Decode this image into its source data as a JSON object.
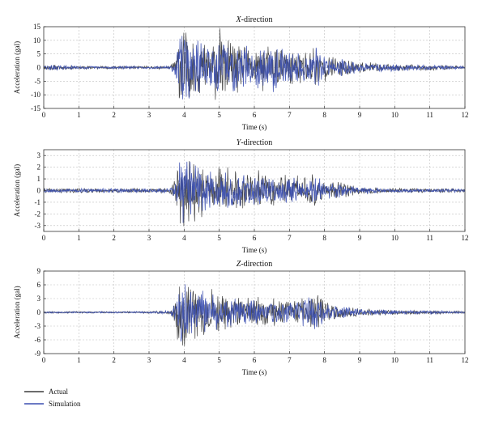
{
  "colors": {
    "actual": "#3c3c3c",
    "simulation": "#3b4fb0",
    "grid": "#bfbfbf",
    "frame": "#333333"
  },
  "legend": [
    {
      "label": "Actual",
      "color": "#3c3c3c"
    },
    {
      "label": "Simulation",
      "color": "#3b4fb0"
    }
  ],
  "chart_data": [
    {
      "type": "line",
      "title_letter": "X",
      "title_rest": "-direction",
      "xlabel": "Time (s)",
      "ylabel": "Acceleration (gal)",
      "xlim": [
        0,
        12
      ],
      "ylim": [
        -15,
        15
      ],
      "xticks": [
        0,
        1,
        2,
        3,
        4,
        5,
        6,
        7,
        8,
        9,
        10,
        11,
        12
      ],
      "yticks": [
        -15,
        -10,
        -5,
        0,
        5,
        10,
        15
      ],
      "grid": true,
      "envelope": {
        "t": [
          0,
          0.2,
          0.5,
          1.0,
          2.0,
          3.0,
          3.6,
          3.75,
          3.85,
          3.95,
          4.1,
          4.3,
          4.6,
          5.0,
          5.5,
          6.0,
          6.5,
          7.0,
          7.5,
          7.7,
          8.0,
          8.5,
          9.0,
          9.5,
          10.0,
          11.0,
          12.0
        ],
        "amp": [
          0.6,
          0.9,
          0.6,
          0.5,
          0.4,
          0.4,
          0.5,
          2.5,
          10.0,
          12.0,
          11.0,
          9.0,
          7.0,
          9.5,
          7.0,
          6.0,
          6.5,
          5.0,
          5.5,
          7.0,
          3.5,
          3.0,
          1.5,
          1.2,
          1.0,
          0.8,
          0.4
        ]
      },
      "series": [
        {
          "name": "Actual",
          "scale": 1.0,
          "seed": 11
        },
        {
          "name": "Simulation",
          "scale": 0.92,
          "seed": 29
        }
      ]
    },
    {
      "type": "line",
      "title_letter": "Y",
      "title_rest": "-direction",
      "xlabel": "Time (s)",
      "ylabel": "Acceleration (gal)",
      "xlim": [
        0,
        12
      ],
      "ylim": [
        -3.5,
        3.5
      ],
      "xticks": [
        0,
        1,
        2,
        3,
        4,
        5,
        6,
        7,
        8,
        9,
        10,
        11,
        12
      ],
      "yticks": [
        -3,
        -2,
        -1,
        0,
        1,
        2,
        3
      ],
      "grid": true,
      "envelope": {
        "t": [
          0,
          1.0,
          2.0,
          3.0,
          3.6,
          3.75,
          3.85,
          3.95,
          4.1,
          4.3,
          4.6,
          5.0,
          5.5,
          6.0,
          6.5,
          7.0,
          7.5,
          7.8,
          8.0,
          8.5,
          9.0,
          9.5,
          10.0,
          11.0,
          12.0
        ],
        "amp": [
          0.15,
          0.15,
          0.15,
          0.15,
          0.2,
          0.8,
          2.0,
          2.8,
          2.5,
          2.0,
          1.6,
          1.4,
          1.3,
          1.2,
          1.1,
          1.0,
          1.0,
          1.1,
          0.6,
          0.5,
          0.25,
          0.2,
          0.15,
          0.15,
          0.12
        ]
      },
      "series": [
        {
          "name": "Actual",
          "scale": 1.0,
          "seed": 41
        },
        {
          "name": "Simulation",
          "scale": 0.9,
          "seed": 53
        }
      ]
    },
    {
      "type": "line",
      "title_letter": "Z",
      "title_rest": "-direction",
      "xlabel": "Time (s)",
      "ylabel": "Acceleration (gal)",
      "xlim": [
        0,
        12
      ],
      "ylim": [
        -9,
        9
      ],
      "xticks": [
        0,
        1,
        2,
        3,
        4,
        5,
        6,
        7,
        8,
        9,
        10,
        11,
        12
      ],
      "yticks": [
        -9,
        -6,
        -3,
        0,
        3,
        6,
        9
      ],
      "grid": true,
      "envelope": {
        "t": [
          0,
          1.0,
          2.0,
          3.0,
          3.6,
          3.75,
          3.85,
          3.95,
          4.1,
          4.3,
          4.6,
          5.0,
          5.5,
          6.0,
          6.5,
          7.0,
          7.5,
          7.8,
          8.0,
          8.5,
          9.0,
          9.5,
          10.0,
          11.0,
          12.0
        ],
        "amp": [
          0.15,
          0.15,
          0.15,
          0.15,
          0.3,
          2.0,
          6.0,
          6.5,
          5.5,
          5.0,
          4.0,
          3.0,
          2.5,
          2.5,
          2.2,
          2.0,
          2.5,
          3.5,
          1.5,
          1.2,
          0.6,
          0.5,
          0.4,
          0.3,
          0.2
        ]
      },
      "series": [
        {
          "name": "Actual",
          "scale": 1.0,
          "seed": 67
        },
        {
          "name": "Simulation",
          "scale": 0.93,
          "seed": 79
        }
      ]
    }
  ]
}
